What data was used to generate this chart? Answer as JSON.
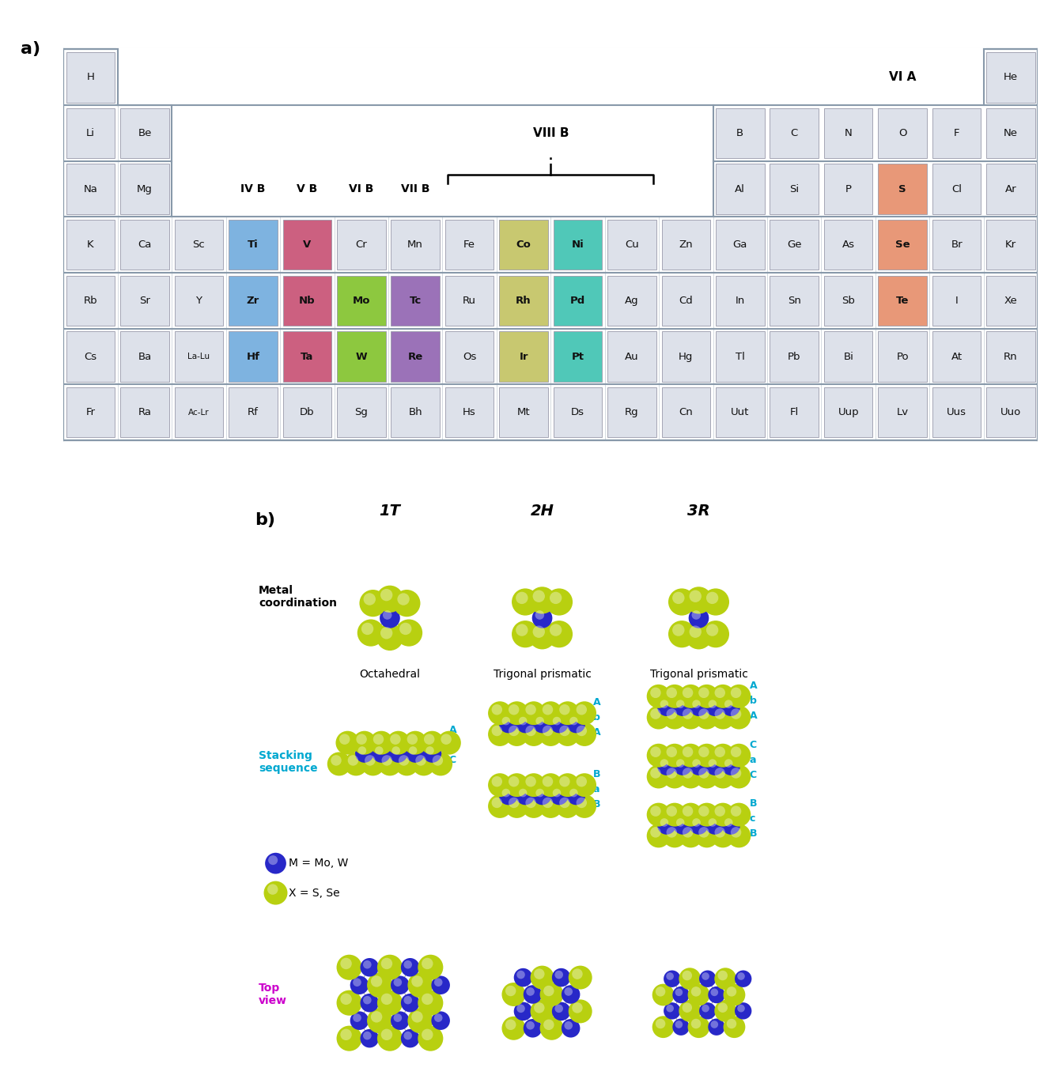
{
  "periodic_table": {
    "cell_bg": "#dde1ea",
    "highlight_blue": "#7eb3e0",
    "highlight_pink": "#cc6080",
    "highlight_green": "#8dc83f",
    "highlight_purple": "#9b72b8",
    "highlight_teal": "#50c8b8",
    "highlight_olive": "#c8c870",
    "highlight_orange": "#e89878",
    "rows": [
      [
        [
          "H",
          "w"
        ],
        [
          "",
          "x"
        ],
        [
          "",
          "x"
        ],
        [
          "",
          "x"
        ],
        [
          "",
          "x"
        ],
        [
          "",
          "x"
        ],
        [
          "",
          "x"
        ],
        [
          "",
          "x"
        ],
        [
          "",
          "x"
        ],
        [
          "",
          "x"
        ],
        [
          "",
          "x"
        ],
        [
          "",
          "x"
        ],
        [
          "",
          "x"
        ],
        [
          "",
          "x"
        ],
        [
          "",
          "x"
        ],
        [
          "",
          "x"
        ],
        [
          "",
          "x"
        ],
        [
          "He",
          "w"
        ]
      ],
      [
        [
          "Li",
          "n"
        ],
        [
          "Be",
          "n"
        ],
        [
          "",
          "x"
        ],
        [
          "",
          "x"
        ],
        [
          "",
          "x"
        ],
        [
          "",
          "x"
        ],
        [
          "",
          "x"
        ],
        [
          "",
          "x"
        ],
        [
          "",
          "x"
        ],
        [
          "",
          "x"
        ],
        [
          "",
          "x"
        ],
        [
          "",
          "x"
        ],
        [
          "B",
          "n"
        ],
        [
          "C",
          "n"
        ],
        [
          "N",
          "n"
        ],
        [
          "O",
          "n"
        ],
        [
          "F",
          "n"
        ],
        [
          "Ne",
          "n"
        ]
      ],
      [
        [
          "Na",
          "n"
        ],
        [
          "Mg",
          "n"
        ],
        [
          "",
          "x"
        ],
        [
          "",
          "x"
        ],
        [
          "",
          "x"
        ],
        [
          "",
          "x"
        ],
        [
          "",
          "x"
        ],
        [
          "",
          "x"
        ],
        [
          "",
          "x"
        ],
        [
          "",
          "x"
        ],
        [
          "",
          "x"
        ],
        [
          "",
          "x"
        ],
        [
          "Al",
          "n"
        ],
        [
          "Si",
          "n"
        ],
        [
          "P",
          "n"
        ],
        [
          "S",
          "S"
        ],
        [
          "Cl",
          "n"
        ],
        [
          "Ar",
          "n"
        ]
      ],
      [
        [
          "K",
          "n"
        ],
        [
          "Ca",
          "n"
        ],
        [
          "Sc",
          "n"
        ],
        [
          "Ti",
          "Ti"
        ],
        [
          "V",
          "V"
        ],
        [
          "Cr",
          "n"
        ],
        [
          "Mn",
          "n"
        ],
        [
          "Fe",
          "n"
        ],
        [
          "Co",
          "Co"
        ],
        [
          "Ni",
          "Ni"
        ],
        [
          "Cu",
          "n"
        ],
        [
          "Zn",
          "n"
        ],
        [
          "Ga",
          "n"
        ],
        [
          "Ge",
          "n"
        ],
        [
          "As",
          "n"
        ],
        [
          "Se",
          "Se"
        ],
        [
          "Br",
          "n"
        ],
        [
          "Kr",
          "n"
        ]
      ],
      [
        [
          "Rb",
          "n"
        ],
        [
          "Sr",
          "n"
        ],
        [
          "Y",
          "n"
        ],
        [
          "Zr",
          "Zr"
        ],
        [
          "Nb",
          "Nb"
        ],
        [
          "Mo",
          "Mo"
        ],
        [
          "Tc",
          "Tc"
        ],
        [
          "Ru",
          "n"
        ],
        [
          "Rh",
          "Rh"
        ],
        [
          "Pd",
          "Pd"
        ],
        [
          "Ag",
          "n"
        ],
        [
          "Cd",
          "n"
        ],
        [
          "In",
          "n"
        ],
        [
          "Sn",
          "n"
        ],
        [
          "Sb",
          "n"
        ],
        [
          "Te",
          "Te"
        ],
        [
          "I",
          "n"
        ],
        [
          "Xe",
          "n"
        ]
      ],
      [
        [
          "Cs",
          "n"
        ],
        [
          "Ba",
          "n"
        ],
        [
          "La-Lu",
          "n"
        ],
        [
          "Hf",
          "Hf"
        ],
        [
          "Ta",
          "Ta"
        ],
        [
          "W",
          "W"
        ],
        [
          "Re",
          "Re"
        ],
        [
          "Os",
          "n"
        ],
        [
          "Ir",
          "Ir"
        ],
        [
          "Pt",
          "Pt"
        ],
        [
          "Au",
          "n"
        ],
        [
          "Hg",
          "n"
        ],
        [
          "Tl",
          "n"
        ],
        [
          "Pb",
          "n"
        ],
        [
          "Bi",
          "n"
        ],
        [
          "Po",
          "n"
        ],
        [
          "At",
          "n"
        ],
        [
          "Rn",
          "n"
        ]
      ],
      [
        [
          "Fr",
          "n"
        ],
        [
          "Ra",
          "n"
        ],
        [
          "Ac-Lr",
          "n"
        ],
        [
          "Rf",
          "n"
        ],
        [
          "Db",
          "n"
        ],
        [
          "Sg",
          "n"
        ],
        [
          "Bh",
          "n"
        ],
        [
          "Hs",
          "n"
        ],
        [
          "Mt",
          "n"
        ],
        [
          "Ds",
          "n"
        ],
        [
          "Rg",
          "n"
        ],
        [
          "Cn",
          "n"
        ],
        [
          "Uut",
          "n"
        ],
        [
          "Fl",
          "n"
        ],
        [
          "Uup",
          "n"
        ],
        [
          "Lv",
          "n"
        ],
        [
          "Uus",
          "n"
        ],
        [
          "Uuo",
          "n"
        ]
      ]
    ]
  },
  "crystal": {
    "blue": "#2828c8",
    "yellow_green": "#b8d010",
    "cyan": "#00a8d0",
    "magenta": "#cc00cc",
    "bond_color": "#aaaaaa"
  }
}
